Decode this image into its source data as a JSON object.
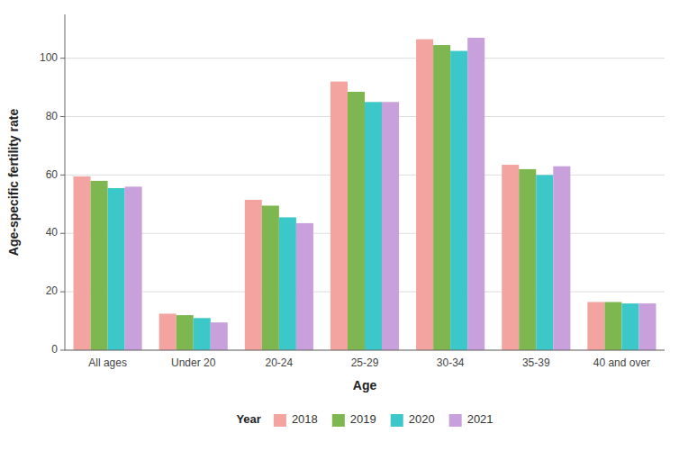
{
  "chart_data": {
    "type": "bar",
    "categories": [
      "All ages",
      "Under 20",
      "20-24",
      "25-29",
      "30-34",
      "35-39",
      "40 and over"
    ],
    "series": [
      {
        "name": "2018",
        "color": "#F4A4A0",
        "values": [
          59.5,
          12.5,
          51.5,
          92.0,
          106.5,
          63.5,
          16.5
        ]
      },
      {
        "name": "2019",
        "color": "#7EB750",
        "values": [
          58.0,
          12.0,
          49.5,
          88.5,
          104.5,
          62.0,
          16.5
        ]
      },
      {
        "name": "2020",
        "color": "#3CC8C8",
        "values": [
          55.5,
          11.0,
          45.5,
          85.0,
          102.5,
          60.0,
          16.0
        ]
      },
      {
        "name": "2021",
        "color": "#C8A0DC",
        "values": [
          56.0,
          9.5,
          43.5,
          85.0,
          107.0,
          63.0,
          16.0
        ]
      }
    ],
    "xlabel": "Age",
    "ylabel": "Age-specific fertility rate",
    "legend_title": "Year",
    "ylim": [
      0,
      115
    ],
    "yticks": [
      0,
      20,
      40,
      60,
      80,
      100
    ],
    "grid": true,
    "legend": "bottom"
  }
}
